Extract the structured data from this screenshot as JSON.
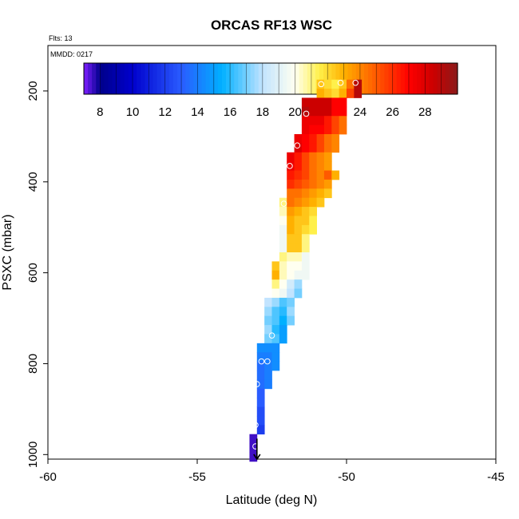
{
  "chart_data": {
    "type": "heatmap",
    "title": "ORCAS RF13 WSC",
    "flights_label": "Flts: 13",
    "date_label": "MMDD: 0217",
    "xlabel": "Latitude (deg N)",
    "ylabel": "PSXC (mbar)",
    "xlim": [
      -60,
      -45
    ],
    "ylim": [
      1010,
      100
    ],
    "x_ticks": [
      -60,
      -55,
      -50,
      -45
    ],
    "x_tick_labels": [
      "-60",
      "-55",
      "-50",
      "-45"
    ],
    "y_ticks": [
      200,
      400,
      600,
      800,
      1000
    ],
    "y_tick_labels": [
      "200",
      "400",
      "600",
      "800",
      "1000"
    ],
    "color_scale": {
      "min": 7,
      "max": 30,
      "ticks": [
        8,
        10,
        12,
        14,
        16,
        18,
        20,
        22,
        24,
        26,
        28
      ],
      "tick_labels": [
        "8",
        "10",
        "12",
        "14",
        "16",
        "18",
        "20",
        "22",
        "24",
        "26",
        "28"
      ],
      "colors": [
        "#7f1fff",
        "#00008b",
        "#0000cd",
        "#2a5cff",
        "#00b0ff",
        "#c2e4ff",
        "#fffff0",
        "#fff04a",
        "#ffb000",
        "#ff5a00",
        "#ff0000",
        "#cc0000",
        "#8b1a1a"
      ],
      "stops": [
        7,
        8,
        10,
        13,
        15.5,
        18,
        20,
        21.5,
        23,
        25,
        27,
        28.5,
        30
      ]
    },
    "cells": [
      {
        "p": 185,
        "x": [
          -51.0,
          -50.75,
          -50.5,
          -50.25,
          -50.0,
          -49.75
        ],
        "v": [
          22.5,
          22.0,
          21.5,
          22.5,
          24.5,
          29.0
        ]
      },
      {
        "p": 205,
        "x": [
          -51.0,
          -50.75,
          -50.5,
          -50.25,
          -50.0,
          -49.75
        ],
        "v": [
          23.0,
          22.5,
          22.0,
          23.0,
          25.5,
          29.0
        ]
      },
      {
        "p": 225,
        "x": [
          -51.5,
          -51.25,
          -51.0,
          -50.75,
          -50.5,
          -50.25
        ],
        "v": [
          28.5,
          28.5,
          28.5,
          28.5,
          27.0,
          27.0
        ]
      },
      {
        "p": 245,
        "x": [
          -51.5,
          -51.25,
          -51.0,
          -50.75,
          -50.5,
          -50.25
        ],
        "v": [
          29.0,
          28.5,
          28.5,
          28.5,
          27.0,
          27.0
        ]
      },
      {
        "p": 265,
        "x": [
          -51.5,
          -51.25,
          -51.0,
          -50.75,
          -50.5,
          -50.25
        ],
        "v": [
          27.5,
          27.5,
          27.5,
          26.5,
          25.5,
          24.5
        ]
      },
      {
        "p": 285,
        "x": [
          -51.5,
          -51.25,
          -51.0,
          -50.75,
          -50.5,
          -50.25
        ],
        "v": [
          27.5,
          27.0,
          27.0,
          26.5,
          25.5,
          24.5
        ]
      },
      {
        "p": 305,
        "x": [
          -51.75,
          -51.5,
          -51.25,
          -51.0,
          -50.75,
          -50.5
        ],
        "v": [
          27.5,
          27.0,
          26.5,
          25.5,
          24.5,
          24.0
        ]
      },
      {
        "p": 325,
        "x": [
          -51.75,
          -51.5,
          -51.25,
          -51.0,
          -50.75,
          -50.5
        ],
        "v": [
          28.0,
          27.0,
          26.5,
          25.5,
          24.5,
          24.0
        ]
      },
      {
        "p": 345,
        "x": [
          -52.0,
          -51.75,
          -51.5,
          -51.25,
          -51.0,
          -50.75
        ],
        "v": [
          27.5,
          26.5,
          25.5,
          24.5,
          24.0,
          23.5
        ]
      },
      {
        "p": 365,
        "x": [
          -52.0,
          -51.75,
          -51.5,
          -51.25,
          -51.0,
          -50.75
        ],
        "v": [
          27.5,
          26.5,
          25.5,
          24.5,
          24.0,
          23.5
        ]
      },
      {
        "p": 385,
        "x": [
          -52.0,
          -51.75,
          -51.5,
          -51.25,
          -51.0,
          -50.75,
          -50.5
        ],
        "v": [
          26.5,
          26.0,
          25.5,
          24.5,
          24.0,
          25.0,
          23.0
        ]
      },
      {
        "p": 405,
        "x": [
          -52.0,
          -51.75,
          -51.5,
          -51.25,
          -51.0,
          -50.75
        ],
        "v": [
          26.0,
          25.5,
          25.0,
          24.5,
          24.0,
          23.5
        ]
      },
      {
        "p": 425,
        "x": [
          -52.0,
          -51.75,
          -51.5,
          -51.25,
          -51.0,
          -50.75
        ],
        "v": [
          24.5,
          24.5,
          24.0,
          23.5,
          23.0,
          22.5
        ]
      },
      {
        "p": 445,
        "x": [
          -52.25,
          -52.0,
          -51.75,
          -51.5,
          -51.25,
          -51.0
        ],
        "v": [
          21.0,
          24.5,
          24.0,
          23.5,
          23.0,
          22.5
        ]
      },
      {
        "p": 465,
        "x": [
          -52.25,
          -52.0,
          -51.75,
          -51.5,
          -51.25
        ],
        "v": [
          20.5,
          23.5,
          23.0,
          22.5,
          22.0
        ]
      },
      {
        "p": 485,
        "x": [
          -52.25,
          -52.0,
          -51.75,
          -51.5,
          -51.25
        ],
        "v": [
          20.0,
          23.0,
          22.5,
          22.5,
          21.5
        ]
      },
      {
        "p": 505,
        "x": [
          -52.25,
          -52.0,
          -51.75,
          -51.5,
          -51.25
        ],
        "v": [
          19.5,
          23.0,
          22.5,
          22.0,
          21.5
        ]
      },
      {
        "p": 525,
        "x": [
          -52.25,
          -52.0,
          -51.75,
          -51.5
        ],
        "v": [
          19.5,
          22.5,
          22.5,
          21.0
        ]
      },
      {
        "p": 545,
        "x": [
          -52.25,
          -52.0,
          -51.75,
          -51.5
        ],
        "v": [
          19.5,
          22.5,
          22.5,
          21.0
        ]
      },
      {
        "p": 565,
        "x": [
          -52.25,
          -52.0,
          -51.75,
          -51.5
        ],
        "v": [
          21.0,
          20.5,
          20.5,
          19.5
        ]
      },
      {
        "p": 585,
        "x": [
          -52.5,
          -52.25,
          -52.0,
          -51.75,
          -51.5
        ],
        "v": [
          22.5,
          20.5,
          20.0,
          20.0,
          19.5
        ]
      },
      {
        "p": 605,
        "x": [
          -52.5,
          -52.25,
          -52.0,
          -51.75,
          -51.5
        ],
        "v": [
          23.0,
          20.5,
          20.0,
          19.5,
          19.5
        ]
      },
      {
        "p": 625,
        "x": [
          -52.5,
          -52.25,
          -52.0,
          -51.75
        ],
        "v": [
          21.0,
          20.0,
          18.5,
          17.5
        ]
      },
      {
        "p": 645,
        "x": [
          -52.5,
          -52.25,
          -52.0,
          -51.75
        ],
        "v": [
          20.0,
          19.5,
          18.0,
          17.0
        ]
      },
      {
        "p": 665,
        "x": [
          -52.75,
          -52.5,
          -52.25,
          -52.0
        ],
        "v": [
          18.0,
          17.5,
          16.5,
          17.0
        ]
      },
      {
        "p": 685,
        "x": [
          -52.75,
          -52.5,
          -52.25,
          -52.0
        ],
        "v": [
          17.5,
          16.5,
          16.0,
          17.5
        ]
      },
      {
        "p": 705,
        "x": [
          -52.75,
          -52.5,
          -52.25,
          -52.0
        ],
        "v": [
          17.0,
          16.5,
          15.5,
          17.0
        ]
      },
      {
        "p": 725,
        "x": [
          -52.75,
          -52.5,
          -52.25
        ],
        "v": [
          17.5,
          16.0,
          15.0
        ]
      },
      {
        "p": 745,
        "x": [
          -52.75,
          -52.5,
          -52.25
        ],
        "v": [
          17.0,
          16.5,
          15.0
        ]
      },
      {
        "p": 765,
        "x": [
          -53.0,
          -52.75,
          -52.5
        ],
        "v": [
          14.5,
          14.5,
          14.5
        ]
      },
      {
        "p": 785,
        "x": [
          -53.0,
          -52.75,
          -52.5
        ],
        "v": [
          14.0,
          14.0,
          14.5
        ]
      },
      {
        "p": 805,
        "x": [
          -53.0,
          -52.75,
          -52.5
        ],
        "v": [
          13.5,
          14.0,
          14.5
        ]
      },
      {
        "p": 825,
        "x": [
          -53.0,
          -52.75
        ],
        "v": [
          13.5,
          14.0
        ]
      },
      {
        "p": 845,
        "x": [
          -53.0,
          -52.75
        ],
        "v": [
          13.5,
          14.0
        ]
      },
      {
        "p": 865,
        "x": [
          -53.0
        ],
        "v": [
          13.0
        ]
      },
      {
        "p": 885,
        "x": [
          -53.0
        ],
        "v": [
          13.0
        ]
      },
      {
        "p": 905,
        "x": [
          -53.0
        ],
        "v": [
          12.5
        ]
      },
      {
        "p": 925,
        "x": [
          -53.0
        ],
        "v": [
          12.5
        ]
      },
      {
        "p": 945,
        "x": [
          -53.0
        ],
        "v": [
          12.0
        ]
      },
      {
        "p": 965,
        "x": [
          -53.25
        ],
        "v": [
          7.5
        ]
      },
      {
        "p": 985,
        "x": [
          -53.25
        ],
        "v": [
          7.5
        ]
      },
      {
        "p": 1005,
        "x": [
          -53.25
        ],
        "v": [
          7.5
        ]
      }
    ],
    "cell_size": {
      "dx": 0.25,
      "dp": 20
    },
    "markers": [
      {
        "x": -50.85,
        "p": 185
      },
      {
        "x": -50.2,
        "p": 182
      },
      {
        "x": -49.7,
        "p": 182
      },
      {
        "x": -51.35,
        "p": 250
      },
      {
        "x": -51.65,
        "p": 320
      },
      {
        "x": -51.9,
        "p": 365
      },
      {
        "x": -52.1,
        "p": 448
      },
      {
        "x": -52.5,
        "p": 738
      },
      {
        "x": -52.85,
        "p": 795
      },
      {
        "x": -52.65,
        "p": 795
      },
      {
        "x": -53.0,
        "p": 845
      },
      {
        "x": -53.05,
        "p": 935
      },
      {
        "x": -53.05,
        "p": 982
      }
    ],
    "arrow": {
      "x": -53.0,
      "p_from": 965,
      "p_to": 1010
    }
  }
}
